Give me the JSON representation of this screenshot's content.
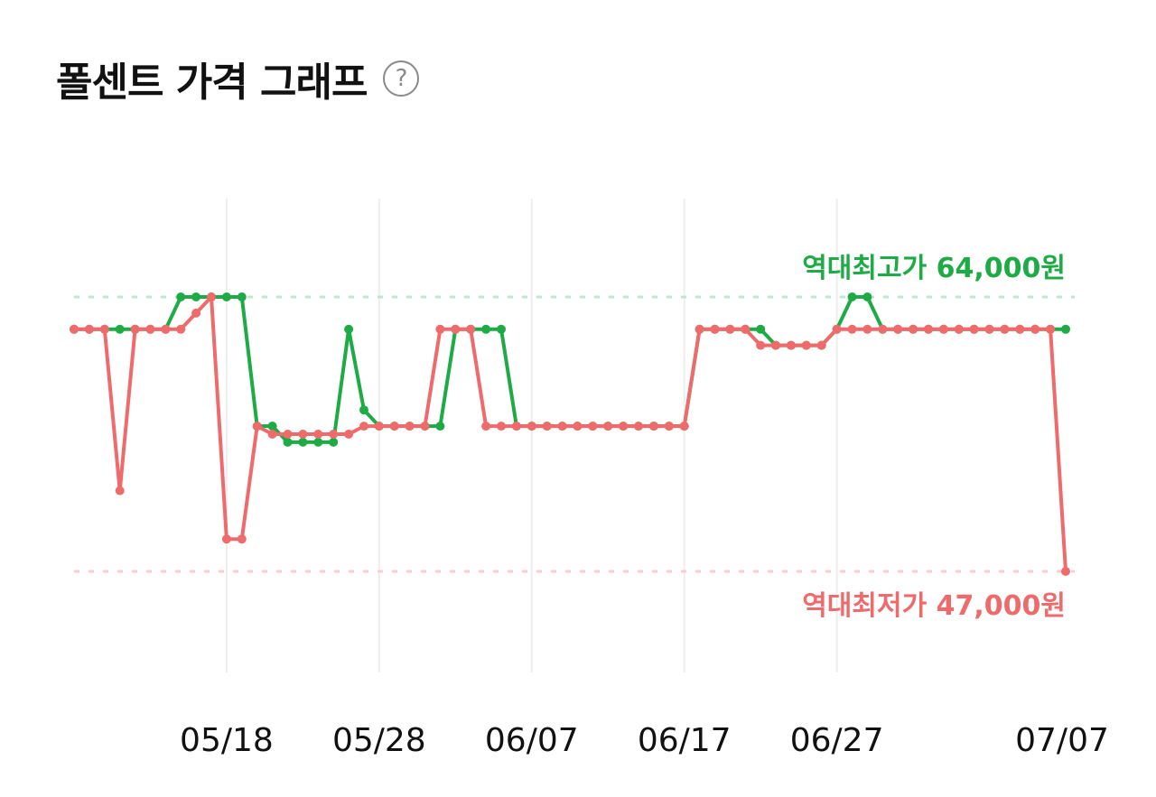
{
  "header": {
    "title": "폴센트 가격 그래프",
    "help_icon": "question-circle-icon"
  },
  "chart_data": {
    "type": "line",
    "x_tick_labels": [
      "05/18",
      "05/28",
      "06/07",
      "06/17",
      "06/27",
      "07/07"
    ],
    "series": [
      {
        "role": "high",
        "color": "#1eab46",
        "values": [
          62000,
          62000,
          62000,
          62000,
          62000,
          62000,
          62000,
          64000,
          64000,
          64000,
          64000,
          64000,
          56000,
          56000,
          55000,
          55000,
          55000,
          55000,
          62000,
          57000,
          56000,
          56000,
          56000,
          56000,
          56000,
          62000,
          62000,
          62000,
          62000,
          56000,
          56000,
          56000,
          56000,
          56000,
          56000,
          56000,
          56000,
          56000,
          56000,
          56000,
          56000,
          62000,
          62000,
          62000,
          62000,
          62000,
          61000,
          61000,
          61000,
          61000,
          62000,
          64000,
          64000,
          62000,
          62000,
          62000,
          62000,
          62000,
          62000,
          62000,
          62000,
          62000,
          62000,
          62000,
          62000,
          62000
        ]
      },
      {
        "role": "low",
        "color": "#ef6b6b",
        "values": [
          62000,
          62000,
          62000,
          52000,
          62000,
          62000,
          62000,
          62000,
          63000,
          64000,
          49000,
          49000,
          56000,
          55500,
          55500,
          55500,
          55500,
          55500,
          55500,
          56000,
          56000,
          56000,
          56000,
          56000,
          62000,
          62000,
          62000,
          56000,
          56000,
          56000,
          56000,
          56000,
          56000,
          56000,
          56000,
          56000,
          56000,
          56000,
          56000,
          56000,
          56000,
          62000,
          62000,
          62000,
          62000,
          61000,
          61000,
          61000,
          61000,
          61000,
          62000,
          62000,
          62000,
          62000,
          62000,
          62000,
          62000,
          62000,
          62000,
          62000,
          62000,
          62000,
          62000,
          62000,
          62000,
          47000
        ]
      }
    ],
    "high_line": {
      "value": 64000,
      "label": "역대최고가 64,000원"
    },
    "low_line": {
      "value": 47000,
      "label": "역대최저가 47,000원"
    },
    "ylim": [
      47000,
      64000
    ],
    "grid": "vertical-only",
    "legend": "none"
  }
}
